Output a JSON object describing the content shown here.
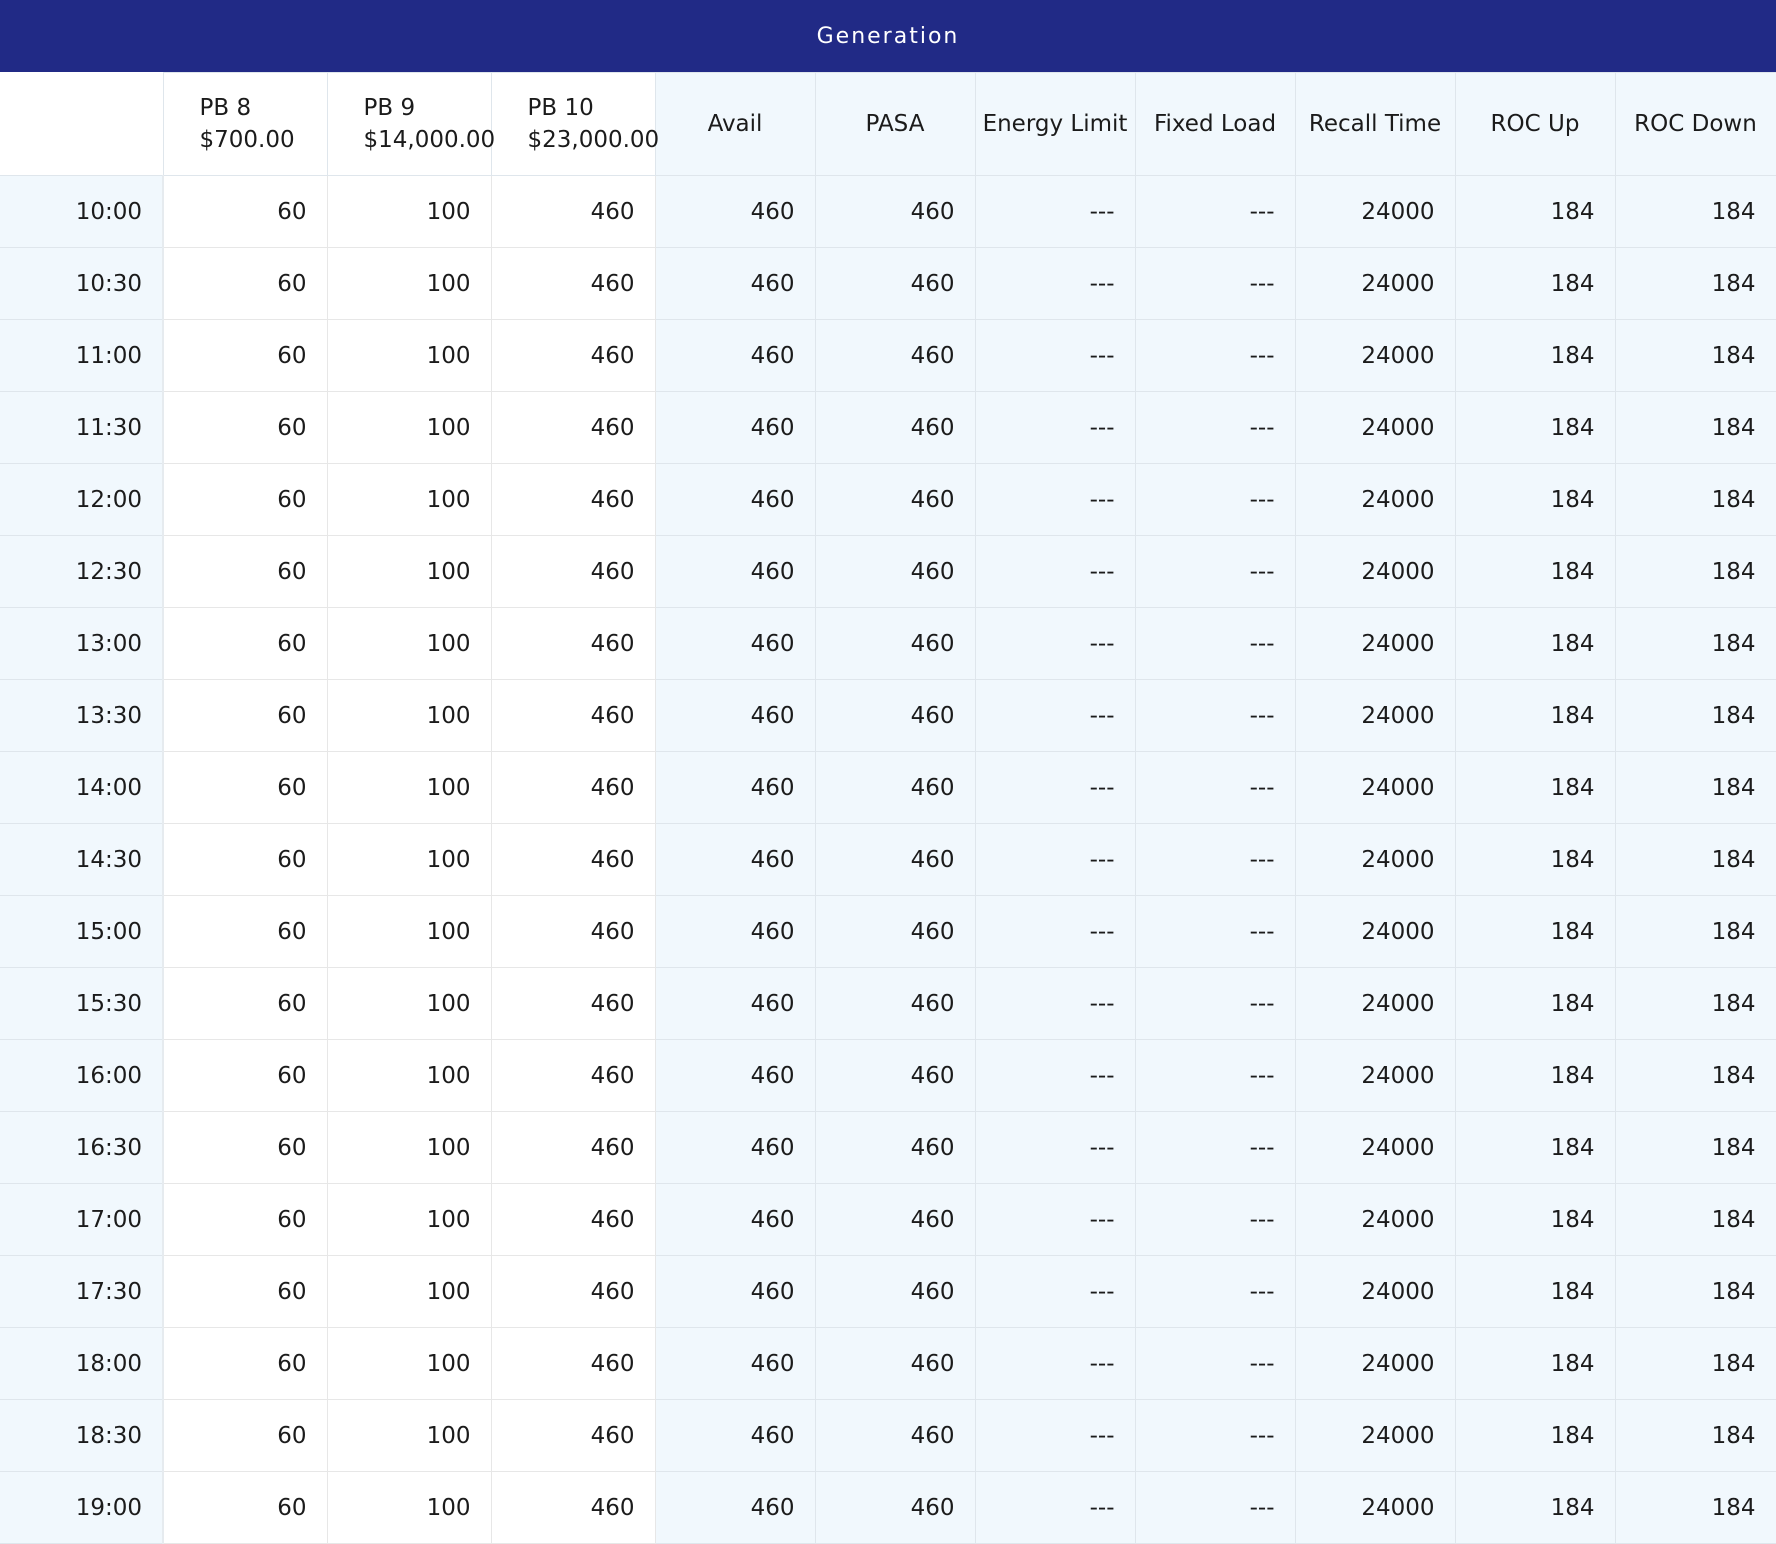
{
  "title": "Generation",
  "headers": {
    "bands": [
      {
        "label": "PB 8",
        "price": "$700.00"
      },
      {
        "label": "PB 9",
        "price": "$14,000.00"
      },
      {
        "label": "PB 10",
        "price": "$23,000.00"
      }
    ],
    "params": [
      "Avail",
      "PASA",
      "Energy Limit",
      "Fixed Load",
      "Recall Time",
      "ROC Up",
      "ROC Down"
    ]
  },
  "rows": [
    {
      "time": "10:00",
      "pb8": "60",
      "pb9": "100",
      "pb10": "460",
      "avail": "460",
      "pasa": "460",
      "energy_limit": "---",
      "fixed_load": "---",
      "recall_time": "24000",
      "roc_up": "184",
      "roc_down": "184"
    },
    {
      "time": "10:30",
      "pb8": "60",
      "pb9": "100",
      "pb10": "460",
      "avail": "460",
      "pasa": "460",
      "energy_limit": "---",
      "fixed_load": "---",
      "recall_time": "24000",
      "roc_up": "184",
      "roc_down": "184"
    },
    {
      "time": "11:00",
      "pb8": "60",
      "pb9": "100",
      "pb10": "460",
      "avail": "460",
      "pasa": "460",
      "energy_limit": "---",
      "fixed_load": "---",
      "recall_time": "24000",
      "roc_up": "184",
      "roc_down": "184"
    },
    {
      "time": "11:30",
      "pb8": "60",
      "pb9": "100",
      "pb10": "460",
      "avail": "460",
      "pasa": "460",
      "energy_limit": "---",
      "fixed_load": "---",
      "recall_time": "24000",
      "roc_up": "184",
      "roc_down": "184"
    },
    {
      "time": "12:00",
      "pb8": "60",
      "pb9": "100",
      "pb10": "460",
      "avail": "460",
      "pasa": "460",
      "energy_limit": "---",
      "fixed_load": "---",
      "recall_time": "24000",
      "roc_up": "184",
      "roc_down": "184"
    },
    {
      "time": "12:30",
      "pb8": "60",
      "pb9": "100",
      "pb10": "460",
      "avail": "460",
      "pasa": "460",
      "energy_limit": "---",
      "fixed_load": "---",
      "recall_time": "24000",
      "roc_up": "184",
      "roc_down": "184"
    },
    {
      "time": "13:00",
      "pb8": "60",
      "pb9": "100",
      "pb10": "460",
      "avail": "460",
      "pasa": "460",
      "energy_limit": "---",
      "fixed_load": "---",
      "recall_time": "24000",
      "roc_up": "184",
      "roc_down": "184"
    },
    {
      "time": "13:30",
      "pb8": "60",
      "pb9": "100",
      "pb10": "460",
      "avail": "460",
      "pasa": "460",
      "energy_limit": "---",
      "fixed_load": "---",
      "recall_time": "24000",
      "roc_up": "184",
      "roc_down": "184"
    },
    {
      "time": "14:00",
      "pb8": "60",
      "pb9": "100",
      "pb10": "460",
      "avail": "460",
      "pasa": "460",
      "energy_limit": "---",
      "fixed_load": "---",
      "recall_time": "24000",
      "roc_up": "184",
      "roc_down": "184"
    },
    {
      "time": "14:30",
      "pb8": "60",
      "pb9": "100",
      "pb10": "460",
      "avail": "460",
      "pasa": "460",
      "energy_limit": "---",
      "fixed_load": "---",
      "recall_time": "24000",
      "roc_up": "184",
      "roc_down": "184"
    },
    {
      "time": "15:00",
      "pb8": "60",
      "pb9": "100",
      "pb10": "460",
      "avail": "460",
      "pasa": "460",
      "energy_limit": "---",
      "fixed_load": "---",
      "recall_time": "24000",
      "roc_up": "184",
      "roc_down": "184"
    },
    {
      "time": "15:30",
      "pb8": "60",
      "pb9": "100",
      "pb10": "460",
      "avail": "460",
      "pasa": "460",
      "energy_limit": "---",
      "fixed_load": "---",
      "recall_time": "24000",
      "roc_up": "184",
      "roc_down": "184"
    },
    {
      "time": "16:00",
      "pb8": "60",
      "pb9": "100",
      "pb10": "460",
      "avail": "460",
      "pasa": "460",
      "energy_limit": "---",
      "fixed_load": "---",
      "recall_time": "24000",
      "roc_up": "184",
      "roc_down": "184"
    },
    {
      "time": "16:30",
      "pb8": "60",
      "pb9": "100",
      "pb10": "460",
      "avail": "460",
      "pasa": "460",
      "energy_limit": "---",
      "fixed_load": "---",
      "recall_time": "24000",
      "roc_up": "184",
      "roc_down": "184"
    },
    {
      "time": "17:00",
      "pb8": "60",
      "pb9": "100",
      "pb10": "460",
      "avail": "460",
      "pasa": "460",
      "energy_limit": "---",
      "fixed_load": "---",
      "recall_time": "24000",
      "roc_up": "184",
      "roc_down": "184"
    },
    {
      "time": "17:30",
      "pb8": "60",
      "pb9": "100",
      "pb10": "460",
      "avail": "460",
      "pasa": "460",
      "energy_limit": "---",
      "fixed_load": "---",
      "recall_time": "24000",
      "roc_up": "184",
      "roc_down": "184"
    },
    {
      "time": "18:00",
      "pb8": "60",
      "pb9": "100",
      "pb10": "460",
      "avail": "460",
      "pasa": "460",
      "energy_limit": "---",
      "fixed_load": "---",
      "recall_time": "24000",
      "roc_up": "184",
      "roc_down": "184"
    },
    {
      "time": "18:30",
      "pb8": "60",
      "pb9": "100",
      "pb10": "460",
      "avail": "460",
      "pasa": "460",
      "energy_limit": "---",
      "fixed_load": "---",
      "recall_time": "24000",
      "roc_up": "184",
      "roc_down": "184"
    },
    {
      "time": "19:00",
      "pb8": "60",
      "pb9": "100",
      "pb10": "460",
      "avail": "460",
      "pasa": "460",
      "energy_limit": "---",
      "fixed_load": "---",
      "recall_time": "24000",
      "roc_up": "184",
      "roc_down": "184"
    }
  ]
}
